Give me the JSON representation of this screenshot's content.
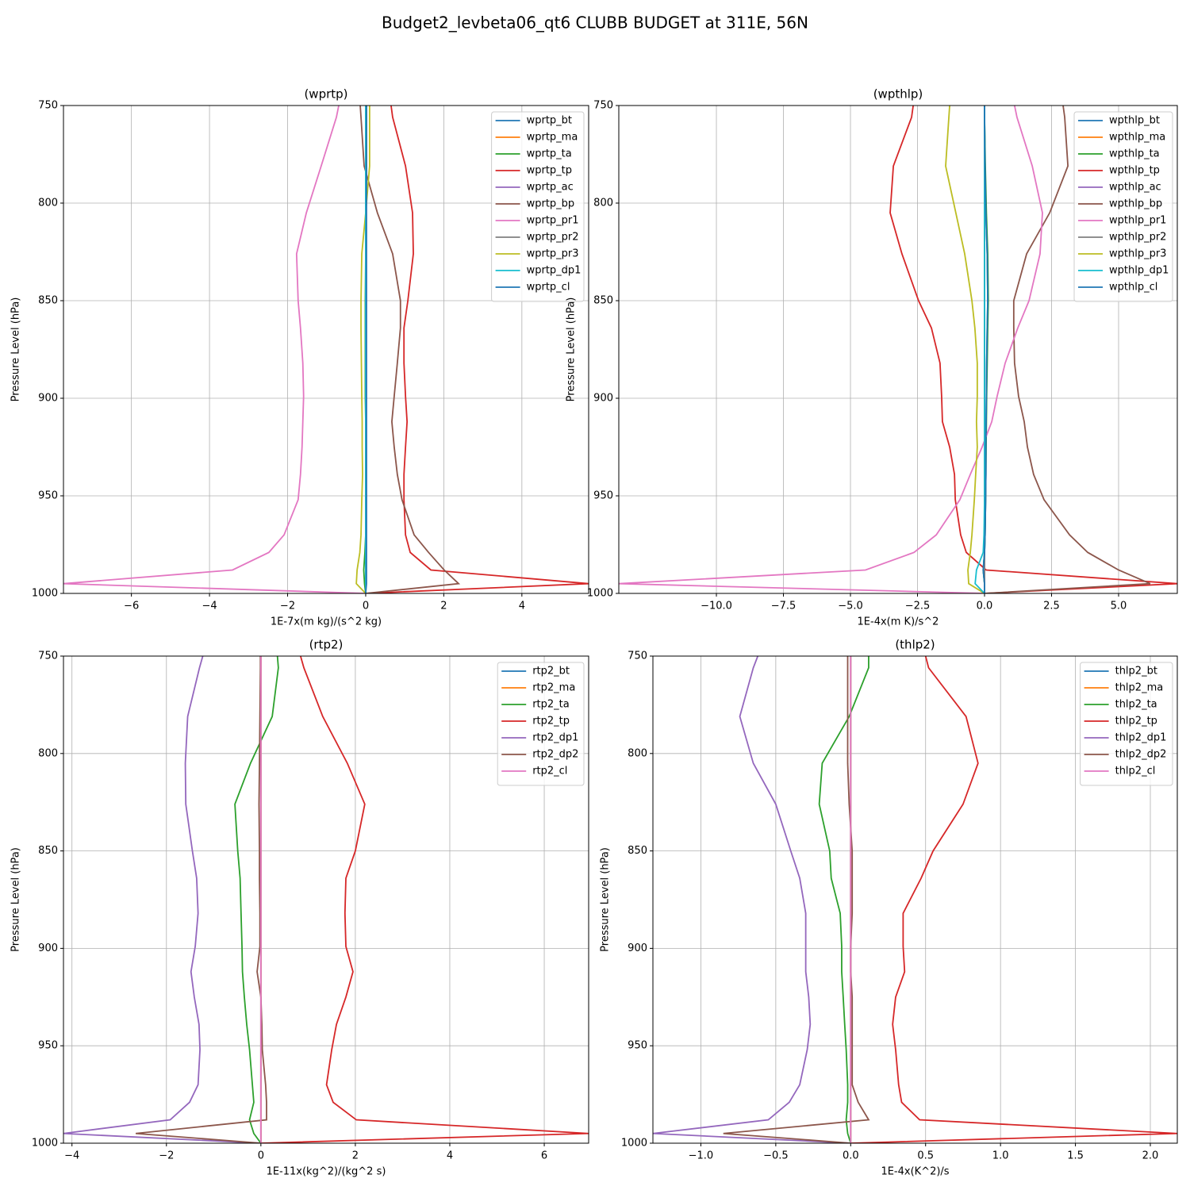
{
  "title": "Budget2_levbeta06_qt6 CLUBB BUDGET at 311E, 56N",
  "chart_data": [
    {
      "type": "line",
      "title": "(wprtp)",
      "x_label": "1E-7x(m kg)/(s^2 kg)",
      "y_label": "Pressure Level (hPa)",
      "y": [
        750,
        756,
        781,
        805,
        826,
        850,
        864,
        882,
        899,
        912,
        925,
        939,
        952,
        970,
        979,
        988,
        995,
        1000
      ],
      "ylim": [
        1000,
        750
      ],
      "yticks": [
        750,
        800,
        850,
        900,
        950,
        1000
      ],
      "xlim": [
        -7.74,
        5.71
      ],
      "xticks": [
        {
          "value": -6,
          "label": "−6"
        },
        {
          "value": -4,
          "label": "−4"
        },
        {
          "value": -2,
          "label": "−2"
        },
        0,
        2,
        4
      ],
      "grid": true,
      "legend": "upper right",
      "series": [
        {
          "name": "wprtp_bt",
          "color": "#1f77b4",
          "values": [
            0,
            0,
            0,
            0,
            0,
            0,
            0,
            0,
            0,
            0,
            0,
            0,
            0,
            0,
            0,
            0,
            0,
            0
          ]
        },
        {
          "name": "wprtp_ma",
          "color": "#ff7f0e",
          "values": [
            0,
            0,
            0,
            0,
            0,
            0,
            0,
            0,
            0,
            0,
            0,
            0,
            0,
            0,
            0,
            0,
            0,
            0
          ]
        },
        {
          "name": "wprtp_ta",
          "color": "#2ca02c",
          "values": [
            0.02,
            0.02,
            0.02,
            0.01,
            0,
            -0.01,
            -0.01,
            -0.01,
            -0.01,
            0,
            0,
            0,
            0,
            0,
            -0.02,
            -0.05,
            -0.03,
            0
          ]
        },
        {
          "name": "wprtp_tp",
          "color": "#d62728",
          "values": [
            0.65,
            0.69,
            1.02,
            1.2,
            1.22,
            1.08,
            0.98,
            0.98,
            1.02,
            1.06,
            1.02,
            0.98,
            0.98,
            1.02,
            1.14,
            1.67,
            5.71,
            0
          ]
        },
        {
          "name": "wprtp_ac",
          "color": "#9467bd",
          "values": [
            0,
            0,
            0,
            0,
            0,
            0,
            0,
            0,
            0,
            0,
            0,
            0,
            0,
            0,
            0,
            0,
            0,
            0
          ]
        },
        {
          "name": "wprtp_bp",
          "color": "#8c564b",
          "values": [
            -0.14,
            -0.12,
            -0.04,
            0.3,
            0.69,
            0.89,
            0.89,
            0.81,
            0.73,
            0.67,
            0.73,
            0.81,
            0.93,
            1.24,
            1.61,
            2.01,
            2.38,
            0
          ]
        },
        {
          "name": "wprtp_pr1",
          "color": "#e377c2",
          "values": [
            -0.69,
            -0.75,
            -1.14,
            -1.52,
            -1.77,
            -1.73,
            -1.67,
            -1.61,
            -1.59,
            -1.61,
            -1.63,
            -1.67,
            -1.73,
            -2.09,
            -2.48,
            -3.41,
            -7.74,
            0
          ]
        },
        {
          "name": "wprtp_pr2",
          "color": "#7f7f7f",
          "values": [
            0,
            0,
            0,
            0,
            0,
            0,
            0,
            0,
            0,
            0,
            0,
            0,
            0,
            0,
            0,
            0,
            0,
            0
          ]
        },
        {
          "name": "wprtp_pr3",
          "color": "#bcbd22",
          "values": [
            0.1,
            0.1,
            0.1,
            0,
            -0.1,
            -0.12,
            -0.12,
            -0.11,
            -0.1,
            -0.09,
            -0.09,
            -0.08,
            -0.1,
            -0.12,
            -0.15,
            -0.22,
            -0.24,
            0
          ]
        },
        {
          "name": "wprtp_dp1",
          "color": "#17becf",
          "values": [
            0,
            0,
            0,
            0,
            0,
            0,
            0,
            0,
            0,
            0,
            0,
            0,
            0,
            0,
            0,
            0,
            0,
            0
          ]
        },
        {
          "name": "wprtp_cl",
          "color": "#1f77b4",
          "values": [
            0.02,
            0.02,
            0.02,
            0.02,
            0.02,
            0.02,
            0.02,
            0.02,
            0.02,
            0.02,
            0.02,
            0.02,
            0.02,
            0.02,
            0.02,
            0.02,
            0.02,
            0
          ]
        }
      ]
    },
    {
      "type": "line",
      "title": "(wpthlp)",
      "x_label": "1E-4x(m K)/s^2",
      "y_label": "Pressure Level (hPa)",
      "y": [
        750,
        756,
        781,
        805,
        826,
        850,
        864,
        882,
        899,
        912,
        925,
        939,
        952,
        970,
        979,
        988,
        995,
        1000
      ],
      "ylim": [
        1000,
        750
      ],
      "yticks": [
        750,
        800,
        850,
        900,
        950,
        1000
      ],
      "xlim": [
        -13.64,
        7.19
      ],
      "xticks": [
        {
          "value": -10,
          "label": "−10.0"
        },
        {
          "value": -7.5,
          "label": "−7.5"
        },
        {
          "value": -5,
          "label": "−5.0"
        },
        {
          "value": -2.5,
          "label": "−2.5"
        },
        {
          "value": 0,
          "label": "0.0"
        },
        {
          "value": 2.5,
          "label": "2.5"
        },
        {
          "value": 5,
          "label": "5.0"
        }
      ],
      "grid": true,
      "legend": "upper right",
      "series": [
        {
          "name": "wpthlp_bt",
          "color": "#1f77b4",
          "values": [
            0,
            0,
            0.02,
            0.05,
            0.1,
            0.12,
            0.1,
            0.08,
            0.07,
            0.06,
            0.05,
            0.05,
            0.04,
            0.02,
            0,
            -0.05,
            0,
            0
          ]
        },
        {
          "name": "wpthlp_ma",
          "color": "#ff7f0e",
          "values": [
            0,
            0,
            0,
            0,
            0,
            0,
            0,
            0,
            0,
            0,
            0,
            0,
            0,
            0,
            0,
            0,
            0,
            0
          ]
        },
        {
          "name": "wpthlp_ta",
          "color": "#2ca02c",
          "values": [
            0,
            0,
            0.03,
            0.07,
            0.12,
            0.14,
            0.12,
            0.1,
            0.08,
            0.07,
            0.06,
            0.05,
            0.04,
            0.02,
            0,
            -0.05,
            0,
            0
          ]
        },
        {
          "name": "wpthlp_tp",
          "color": "#d62728",
          "values": [
            -2.66,
            -2.72,
            -3.4,
            -3.52,
            -3.08,
            -2.46,
            -1.98,
            -1.66,
            -1.6,
            -1.57,
            -1.3,
            -1.12,
            -1.09,
            -0.89,
            -0.68,
            0.06,
            7.19,
            0
          ]
        },
        {
          "name": "wpthlp_ac",
          "color": "#9467bd",
          "values": [
            0,
            0,
            0,
            0,
            0,
            0,
            0,
            0,
            0,
            0,
            0,
            0,
            0,
            0,
            0,
            0,
            0,
            0
          ]
        },
        {
          "name": "wpthlp_bp",
          "color": "#8c564b",
          "values": [
            2.93,
            2.99,
            3.11,
            2.43,
            1.57,
            1.09,
            1.09,
            1.12,
            1.27,
            1.48,
            1.6,
            1.83,
            2.22,
            3.17,
            3.85,
            5.0,
            6.18,
            0
          ]
        },
        {
          "name": "wpthlp_pr1",
          "color": "#e377c2",
          "values": [
            1.12,
            1.21,
            1.78,
            2.16,
            2.07,
            1.66,
            1.24,
            0.77,
            0.47,
            0.27,
            -0.09,
            -0.53,
            -0.92,
            -1.8,
            -2.63,
            -4.44,
            -13.64,
            0
          ]
        },
        {
          "name": "wpthlp_pr2",
          "color": "#7f7f7f",
          "values": [
            0,
            0,
            0,
            0,
            0,
            0,
            0,
            0,
            0,
            0,
            0,
            0,
            0,
            0,
            0,
            0,
            0,
            0
          ]
        },
        {
          "name": "wpthlp_pr3",
          "color": "#bcbd22",
          "values": [
            -1.3,
            -1.33,
            -1.45,
            -1.07,
            -0.74,
            -0.47,
            -0.36,
            -0.27,
            -0.27,
            -0.3,
            -0.27,
            -0.33,
            -0.38,
            -0.47,
            -0.53,
            -0.62,
            -0.59,
            0
          ]
        },
        {
          "name": "wpthlp_dp1",
          "color": "#17becf",
          "values": [
            0,
            0,
            0,
            0,
            0,
            0,
            0,
            0,
            0,
            0,
            0,
            0,
            0,
            -0.02,
            -0.05,
            -0.3,
            -0.35,
            0
          ]
        },
        {
          "name": "wpthlp_cl",
          "color": "#1f77b4",
          "values": [
            0,
            0,
            0.02,
            0.05,
            0.1,
            0.12,
            0.1,
            0.08,
            0.07,
            0.06,
            0.05,
            0.05,
            0.04,
            0.02,
            0,
            -0.05,
            0,
            0
          ]
        }
      ]
    },
    {
      "type": "line",
      "title": "(rtp2)",
      "x_label": "1E-11x(kg^2)/(kg^2 s)",
      "y_label": "Pressure Level (hPa)",
      "y": [
        750,
        756,
        781,
        805,
        826,
        850,
        864,
        882,
        899,
        912,
        925,
        939,
        952,
        970,
        979,
        988,
        995,
        1000
      ],
      "ylim": [
        1000,
        750
      ],
      "yticks": [
        750,
        800,
        850,
        900,
        950,
        1000
      ],
      "xlim": [
        -4.18,
        6.94
      ],
      "xticks": [
        {
          "value": -4,
          "label": "−4"
        },
        {
          "value": -2,
          "label": "−2"
        },
        0,
        2,
        4,
        6
      ],
      "grid": true,
      "legend": "upper right",
      "series": [
        {
          "name": "rtp2_bt",
          "color": "#1f77b4",
          "values": [
            0,
            0,
            0,
            0,
            0,
            0,
            0,
            0,
            0,
            0,
            0,
            0,
            0,
            0,
            0,
            0,
            0,
            0
          ]
        },
        {
          "name": "rtp2_ma",
          "color": "#ff7f0e",
          "values": [
            0,
            0,
            0,
            0,
            0,
            0,
            0,
            0,
            0,
            0,
            0,
            0,
            0,
            0,
            0,
            0,
            0,
            0
          ]
        },
        {
          "name": "rtp2_ta",
          "color": "#2ca02c",
          "values": [
            0.35,
            0.37,
            0.24,
            -0.22,
            -0.55,
            -0.49,
            -0.44,
            -0.42,
            -0.4,
            -0.39,
            -0.35,
            -0.3,
            -0.24,
            -0.18,
            -0.15,
            -0.24,
            -0.15,
            0
          ]
        },
        {
          "name": "rtp2_tp",
          "color": "#d62728",
          "values": [
            0.84,
            0.91,
            1.31,
            1.83,
            2.2,
            2.0,
            1.8,
            1.78,
            1.8,
            1.95,
            1.8,
            1.6,
            1.5,
            1.39,
            1.53,
            2.02,
            6.94,
            0
          ]
        },
        {
          "name": "rtp2_dp1",
          "color": "#9467bd",
          "values": [
            -1.23,
            -1.3,
            -1.55,
            -1.6,
            -1.59,
            -1.45,
            -1.36,
            -1.33,
            -1.39,
            -1.48,
            -1.41,
            -1.31,
            -1.29,
            -1.33,
            -1.51,
            -1.92,
            -4.18,
            0
          ]
        },
        {
          "name": "rtp2_dp2",
          "color": "#8c564b",
          "values": [
            -0.01,
            -0.01,
            -0.02,
            -0.03,
            -0.04,
            -0.03,
            -0.03,
            -0.02,
            -0.02,
            -0.08,
            0,
            0.02,
            0.03,
            0.1,
            0.12,
            0.12,
            -2.65,
            0
          ]
        },
        {
          "name": "rtp2_cl",
          "color": "#e377c2",
          "values": [
            0,
            0,
            0,
            0,
            0,
            0,
            0,
            0,
            0,
            0,
            0,
            0,
            0,
            0,
            0,
            0,
            0,
            0
          ]
        }
      ]
    },
    {
      "type": "line",
      "title": "(thlp2)",
      "x_label": "1E-4x(K^2)/s",
      "y_label": "Pressure Level (hPa)",
      "y": [
        750,
        756,
        781,
        805,
        826,
        850,
        864,
        882,
        899,
        912,
        925,
        939,
        952,
        970,
        979,
        988,
        995,
        1000
      ],
      "ylim": [
        1000,
        750
      ],
      "yticks": [
        750,
        800,
        850,
        900,
        950,
        1000
      ],
      "xlim": [
        -1.32,
        2.18
      ],
      "xticks": [
        {
          "value": -1,
          "label": "−1.0"
        },
        {
          "value": -0.5,
          "label": "−0.5"
        },
        {
          "value": 0,
          "label": "0.0"
        },
        {
          "value": 0.5,
          "label": "0.5"
        },
        {
          "value": 1,
          "label": "1.0"
        },
        {
          "value": 1.5,
          "label": "1.5"
        },
        {
          "value": 2,
          "label": "2.0"
        }
      ],
      "grid": true,
      "legend": "upper right",
      "series": [
        {
          "name": "thlp2_bt",
          "color": "#1f77b4",
          "values": [
            0,
            0,
            0,
            0,
            0,
            0,
            0,
            0,
            0,
            0,
            0,
            0,
            0,
            0,
            0,
            0,
            0,
            0
          ]
        },
        {
          "name": "thlp2_ma",
          "color": "#ff7f0e",
          "values": [
            0,
            0,
            0,
            0,
            0,
            0,
            0,
            0,
            0,
            0,
            0,
            0,
            0,
            0,
            0,
            0,
            0,
            0
          ]
        },
        {
          "name": "thlp2_ta",
          "color": "#2ca02c",
          "values": [
            0.12,
            0.12,
            -0.01,
            -0.19,
            -0.21,
            -0.14,
            -0.13,
            -0.07,
            -0.06,
            -0.06,
            -0.05,
            -0.04,
            -0.03,
            -0.02,
            -0.02,
            -0.03,
            -0.02,
            0
          ]
        },
        {
          "name": "thlp2_tp",
          "color": "#d62728",
          "values": [
            0.5,
            0.52,
            0.77,
            0.85,
            0.75,
            0.55,
            0.47,
            0.35,
            0.35,
            0.36,
            0.3,
            0.28,
            0.3,
            0.32,
            0.34,
            0.46,
            2.18,
            0
          ]
        },
        {
          "name": "thlp2_dp1",
          "color": "#9467bd",
          "values": [
            -0.62,
            -0.65,
            -0.74,
            -0.65,
            -0.5,
            -0.4,
            -0.34,
            -0.3,
            -0.3,
            -0.3,
            -0.28,
            -0.27,
            -0.29,
            -0.34,
            -0.41,
            -0.55,
            -1.32,
            0
          ]
        },
        {
          "name": "thlp2_dp2",
          "color": "#8c564b",
          "values": [
            -0.02,
            -0.02,
            -0.02,
            -0.02,
            -0.01,
            0.01,
            0.01,
            0.01,
            0,
            0,
            0.01,
            0.01,
            0.01,
            0.01,
            0.05,
            0.12,
            -0.85,
            0
          ]
        },
        {
          "name": "thlp2_cl",
          "color": "#e377c2",
          "values": [
            0,
            0,
            0,
            0,
            0,
            0,
            0,
            0,
            0,
            0,
            0,
            0,
            0,
            0,
            0,
            0,
            0,
            0
          ]
        }
      ]
    }
  ]
}
